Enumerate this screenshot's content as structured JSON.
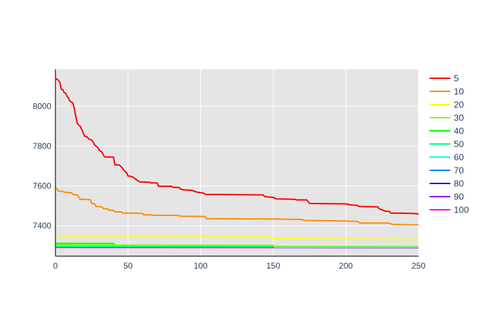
{
  "chart_data": {
    "type": "line",
    "title": "",
    "xlabel": "",
    "ylabel": "",
    "xlim": [
      0,
      250
    ],
    "ylim": [
      7248,
      8185
    ],
    "x_ticks": [
      0,
      50,
      100,
      150,
      200,
      250
    ],
    "y_ticks": [
      7400,
      7600,
      7800,
      8000
    ],
    "grid": true,
    "legend_position": "right",
    "plot_background": "#e5e5e5",
    "series": [
      {
        "name": "5",
        "color": "#ff0000",
        "points": [
          [
            0,
            8140
          ],
          [
            2,
            8130
          ],
          [
            3,
            8120
          ],
          [
            4,
            8085
          ],
          [
            5,
            8083
          ],
          [
            6,
            8068
          ],
          [
            7,
            8065
          ],
          [
            8,
            8050
          ],
          [
            9,
            8040
          ],
          [
            10,
            8025
          ],
          [
            12,
            8015
          ],
          [
            13,
            7990
          ],
          [
            14,
            7950
          ],
          [
            15,
            7915
          ],
          [
            16,
            7905
          ],
          [
            17,
            7900
          ],
          [
            18,
            7885
          ],
          [
            19,
            7870
          ],
          [
            20,
            7850
          ],
          [
            22,
            7845
          ],
          [
            23,
            7835
          ],
          [
            25,
            7830
          ],
          [
            26,
            7820
          ],
          [
            27,
            7805
          ],
          [
            29,
            7795
          ],
          [
            30,
            7780
          ],
          [
            32,
            7770
          ],
          [
            33,
            7755
          ],
          [
            34,
            7745
          ],
          [
            38,
            7745
          ],
          [
            40,
            7745
          ],
          [
            41,
            7705
          ],
          [
            44,
            7705
          ],
          [
            46,
            7690
          ],
          [
            47,
            7680
          ],
          [
            49,
            7665
          ],
          [
            50,
            7650
          ],
          [
            52,
            7648
          ],
          [
            54,
            7642
          ],
          [
            55,
            7635
          ],
          [
            57,
            7625
          ],
          [
            58,
            7620
          ],
          [
            65,
            7618
          ],
          [
            66,
            7615
          ],
          [
            70,
            7615
          ],
          [
            71,
            7598
          ],
          [
            80,
            7598
          ],
          [
            81,
            7593
          ],
          [
            85,
            7593
          ],
          [
            86,
            7585
          ],
          [
            88,
            7580
          ],
          [
            94,
            7578
          ],
          [
            96,
            7572
          ],
          [
            98,
            7568
          ],
          [
            100,
            7566
          ],
          [
            102,
            7565
          ],
          [
            103,
            7558
          ],
          [
            120,
            7557
          ],
          [
            140,
            7555
          ],
          [
            143,
            7555
          ],
          [
            144,
            7547
          ],
          [
            146,
            7545
          ],
          [
            150,
            7543
          ],
          [
            152,
            7535
          ],
          [
            165,
            7533
          ],
          [
            166,
            7530
          ],
          [
            173,
            7530
          ],
          [
            175,
            7512
          ],
          [
            200,
            7510
          ],
          [
            203,
            7505
          ],
          [
            208,
            7502
          ],
          [
            209,
            7497
          ],
          [
            222,
            7495
          ],
          [
            223,
            7485
          ],
          [
            225,
            7480
          ],
          [
            227,
            7474
          ],
          [
            230,
            7472
          ],
          [
            231,
            7464
          ],
          [
            240,
            7463
          ],
          [
            245,
            7462
          ],
          [
            249,
            7461
          ],
          [
            250,
            7457
          ]
        ]
      },
      {
        "name": "10",
        "color": "#ff8c00",
        "points": [
          [
            0,
            7593
          ],
          [
            1,
            7585
          ],
          [
            2,
            7575
          ],
          [
            5,
            7572
          ],
          [
            7,
            7568
          ],
          [
            9,
            7567
          ],
          [
            11,
            7566
          ],
          [
            12,
            7558
          ],
          [
            15,
            7555
          ],
          [
            16,
            7546
          ],
          [
            17,
            7533
          ],
          [
            20,
            7533
          ],
          [
            22,
            7532
          ],
          [
            24,
            7532
          ],
          [
            25,
            7512
          ],
          [
            27,
            7510
          ],
          [
            28,
            7497
          ],
          [
            32,
            7495
          ],
          [
            33,
            7487
          ],
          [
            36,
            7485
          ],
          [
            37,
            7478
          ],
          [
            40,
            7478
          ],
          [
            41,
            7470
          ],
          [
            45,
            7470
          ],
          [
            46,
            7465
          ],
          [
            60,
            7462
          ],
          [
            61,
            7455
          ],
          [
            66,
            7455
          ],
          [
            67,
            7453
          ],
          [
            85,
            7452
          ],
          [
            86,
            7448
          ],
          [
            103,
            7447
          ],
          [
            104,
            7436
          ],
          [
            130,
            7435
          ],
          [
            150,
            7434
          ],
          [
            170,
            7432
          ],
          [
            171,
            7427
          ],
          [
            200,
            7424
          ],
          [
            208,
            7422
          ],
          [
            210,
            7414
          ],
          [
            230,
            7414
          ],
          [
            232,
            7407
          ],
          [
            245,
            7405
          ],
          [
            250,
            7405
          ]
        ]
      },
      {
        "name": "20",
        "color": "#ffff00",
        "points": [
          [
            0,
            7350
          ],
          [
            100,
            7350
          ],
          [
            147,
            7348
          ],
          [
            150,
            7335
          ],
          [
            200,
            7333
          ],
          [
            250,
            7332
          ]
        ]
      },
      {
        "name": "30",
        "color": "#7fff00",
        "points": [
          [
            0,
            7305
          ],
          [
            60,
            7303
          ],
          [
            150,
            7303
          ],
          [
            151,
            7293
          ],
          [
            250,
            7293
          ]
        ]
      },
      {
        "name": "40",
        "color": "#00ff00",
        "points": [
          [
            0,
            7312
          ],
          [
            40,
            7312
          ],
          [
            41,
            7303
          ],
          [
            150,
            7301
          ],
          [
            151,
            7293
          ],
          [
            250,
            7293
          ]
        ]
      },
      {
        "name": "50",
        "color": "#00ff7f",
        "points": [
          [
            0,
            7297
          ],
          [
            250,
            7295
          ]
        ]
      },
      {
        "name": "60",
        "color": "#00ffff",
        "points": [
          [
            0,
            7296
          ],
          [
            250,
            7294
          ]
        ]
      },
      {
        "name": "70",
        "color": "#007fff",
        "points": [
          [
            0,
            7295
          ],
          [
            250,
            7293
          ]
        ]
      },
      {
        "name": "80",
        "color": "#0000ff",
        "points": [
          [
            0,
            7294
          ],
          [
            250,
            7292
          ]
        ]
      },
      {
        "name": "90",
        "color": "#8b00ff",
        "points": [
          [
            0,
            7293
          ],
          [
            250,
            7292
          ]
        ]
      },
      {
        "name": "100",
        "color": "#ff00ff",
        "points": [
          [
            0,
            7292
          ],
          [
            250,
            7291
          ]
        ]
      }
    ]
  }
}
